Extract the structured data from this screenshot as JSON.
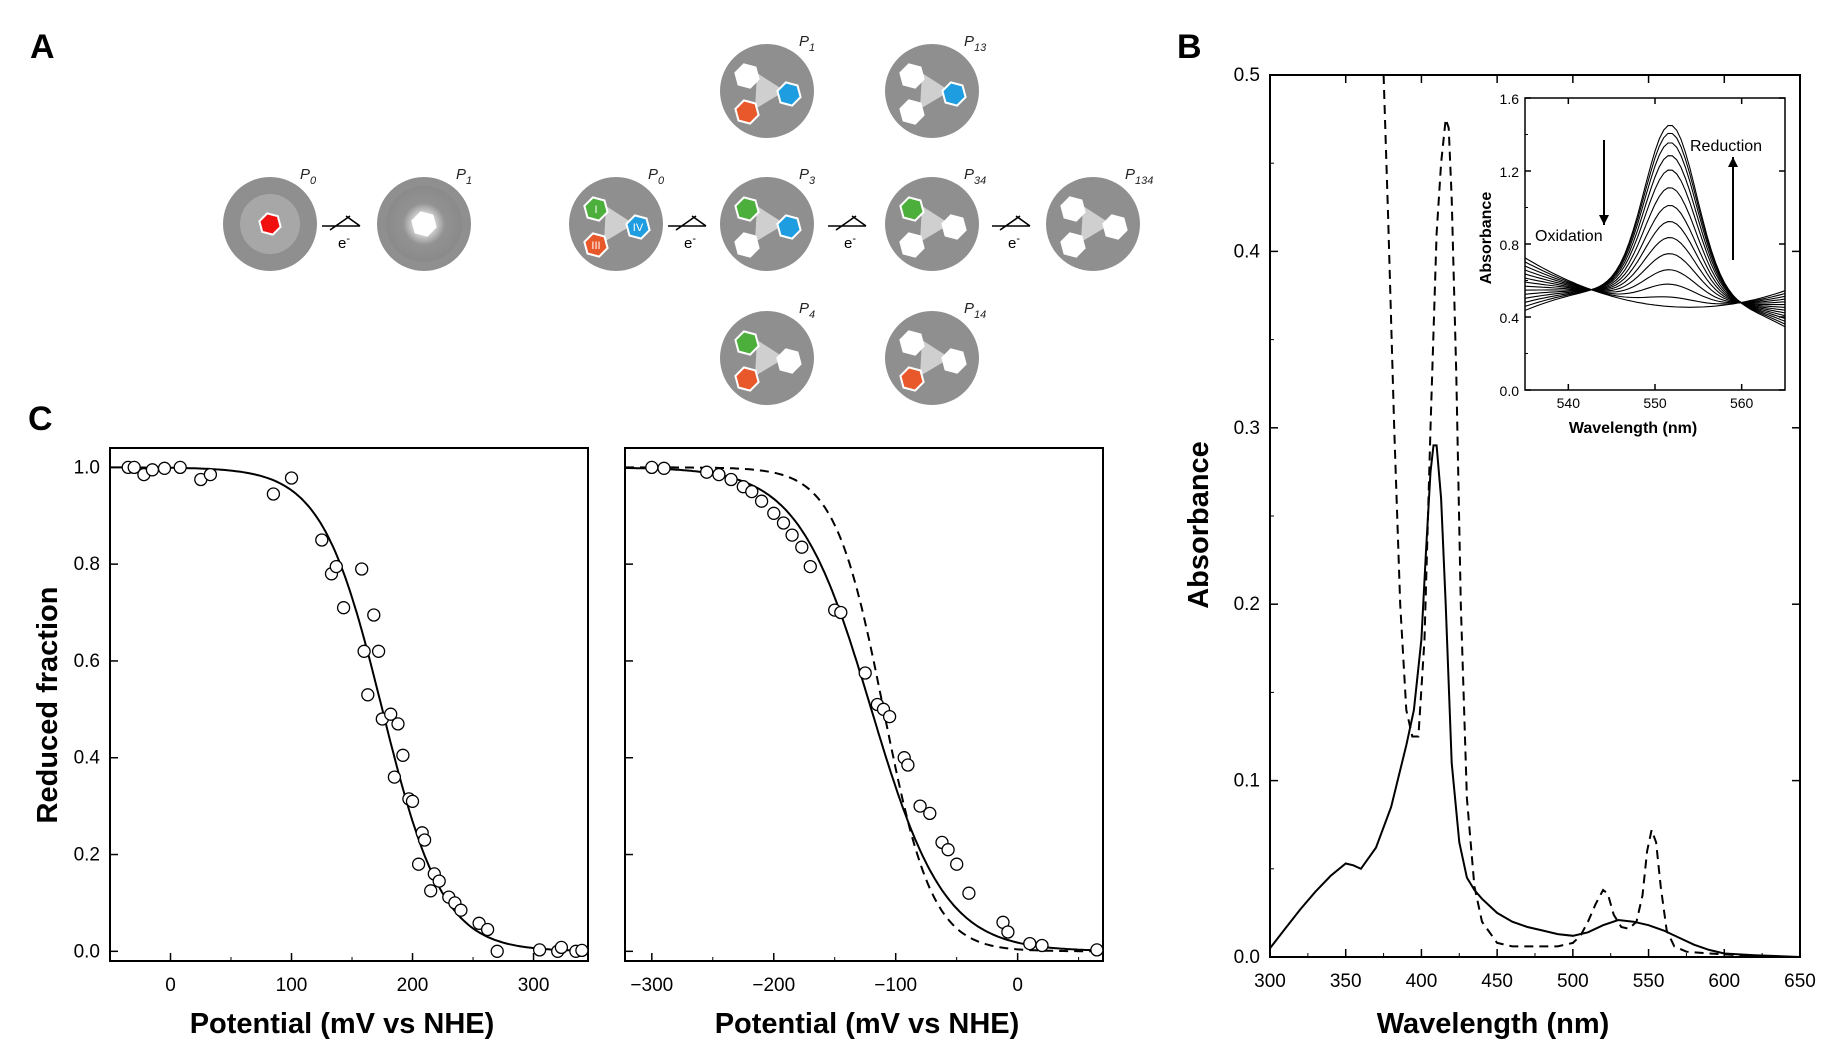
{
  "panel_labels": {
    "a": "A",
    "b": "B",
    "c": "C"
  },
  "schematic": {
    "electron_label": "e",
    "electron_sup": "-",
    "states": [
      {
        "key": "p0a",
        "label": "P",
        "sub": "0"
      },
      {
        "key": "p1a",
        "label": "P",
        "sub": "1"
      },
      {
        "key": "p0b",
        "label": "P",
        "sub": "0"
      },
      {
        "key": "p1b",
        "label": "P",
        "sub": "1"
      },
      {
        "key": "p13",
        "label": "P",
        "sub": "13"
      },
      {
        "key": "p3",
        "label": "P",
        "sub": "3"
      },
      {
        "key": "p34",
        "label": "P",
        "sub": "34"
      },
      {
        "key": "p134",
        "label": "P",
        "sub": "134"
      },
      {
        "key": "p4",
        "label": "P",
        "sub": "4"
      },
      {
        "key": "p14",
        "label": "P",
        "sub": "14"
      }
    ],
    "heme_labels": {
      "h1": "I",
      "h3": "III",
      "h4": "IV"
    },
    "colors": {
      "disk": "#8f8f8f",
      "heme1": "#4caf3c",
      "heme3": "#e8582a",
      "heme4": "#1e9de0",
      "single": "#f01010",
      "reduced": "#ffffff"
    }
  },
  "chart_data": [
    {
      "id": "B-main",
      "type": "line",
      "xlabel": "Wavelength (nm)",
      "ylabel": "Absorbance",
      "xlim": [
        300,
        650
      ],
      "ylim": [
        0,
        0.5
      ],
      "xticks": [
        300,
        350,
        400,
        450,
        500,
        550,
        600,
        650
      ],
      "yticks": [
        0.0,
        0.1,
        0.2,
        0.3,
        0.4,
        0.5
      ],
      "series": [
        {
          "name": "solid",
          "style": "solid",
          "x": [
            300,
            310,
            320,
            330,
            340,
            350,
            355,
            360,
            370,
            380,
            390,
            395,
            400,
            403,
            406,
            408,
            410,
            413,
            416,
            420,
            425,
            430,
            435,
            440,
            450,
            460,
            470,
            480,
            490,
            500,
            510,
            520,
            530,
            540,
            550,
            560,
            570,
            580,
            590,
            600,
            620,
            650
          ],
          "y": [
            0.005,
            0.016,
            0.027,
            0.037,
            0.046,
            0.053,
            0.052,
            0.05,
            0.062,
            0.085,
            0.12,
            0.14,
            0.18,
            0.23,
            0.275,
            0.29,
            0.29,
            0.26,
            0.2,
            0.11,
            0.065,
            0.045,
            0.038,
            0.033,
            0.025,
            0.02,
            0.017,
            0.015,
            0.013,
            0.012,
            0.014,
            0.018,
            0.021,
            0.02,
            0.018,
            0.015,
            0.011,
            0.007,
            0.004,
            0.002,
            0.001,
            0.0
          ]
        },
        {
          "name": "dashed",
          "style": "dashed",
          "x": [
            375,
            378,
            382,
            386,
            390,
            394,
            398,
            402,
            406,
            410,
            413,
            416,
            418,
            420,
            423,
            426,
            430,
            435,
            440,
            450,
            460,
            470,
            480,
            490,
            500,
            505,
            510,
            515,
            520,
            523,
            527,
            532,
            537,
            542,
            546,
            549,
            552,
            555,
            558,
            562,
            567,
            575,
            590,
            610,
            630,
            650
          ],
          "y": [
            0.5,
            0.42,
            0.3,
            0.2,
            0.14,
            0.125,
            0.125,
            0.18,
            0.3,
            0.41,
            0.45,
            0.475,
            0.47,
            0.43,
            0.33,
            0.2,
            0.09,
            0.04,
            0.02,
            0.008,
            0.006,
            0.006,
            0.006,
            0.006,
            0.008,
            0.012,
            0.02,
            0.03,
            0.038,
            0.036,
            0.024,
            0.017,
            0.016,
            0.02,
            0.035,
            0.06,
            0.072,
            0.065,
            0.04,
            0.015,
            0.006,
            0.003,
            0.002,
            0.001,
            0.0,
            0.0
          ]
        }
      ]
    },
    {
      "id": "B-inset",
      "type": "line",
      "xlabel": "Wavelength (nm)",
      "ylabel": "Absorbance",
      "xlim": [
        535,
        565
      ],
      "ylim": [
        0.0,
        1.6
      ],
      "xticks": [
        540,
        550,
        560
      ],
      "yticks": [
        0.0,
        0.4,
        0.8,
        1.2,
        1.6
      ],
      "annotations": {
        "oxidation": "Oxidation",
        "reduction": "Reduction"
      },
      "series": {
        "peak_x": 551.8,
        "peak_heights": [
          0.0,
          0.05,
          0.12,
          0.2,
          0.29,
          0.38,
          0.47,
          0.56,
          0.66,
          0.76,
          0.84,
          0.91,
          0.96,
          1.0
        ],
        "isosbestic_x": [
          543,
          559
        ],
        "isosbestic_y": [
          0.55,
          0.45
        ]
      }
    },
    {
      "id": "C-left",
      "type": "scatter",
      "xlabel": "Potential (mV vs NHE)",
      "ylabel": "Reduced fraction",
      "xlim": [
        -50,
        345
      ],
      "ylim": [
        -0.02,
        1.04
      ],
      "xticks": [
        0,
        100,
        200,
        300
      ],
      "yticks": [
        0.0,
        0.2,
        0.4,
        0.6,
        0.8,
        1.0
      ],
      "fit": {
        "midpoint": 175,
        "width": 25
      },
      "points": {
        "x": [
          -35,
          -30,
          -22,
          -15,
          -5,
          8,
          25,
          33,
          85,
          100,
          125,
          133,
          137,
          143,
          158,
          160,
          163,
          168,
          172,
          175,
          182,
          185,
          188,
          192,
          197,
          200,
          205,
          208,
          210,
          215,
          218,
          222,
          230,
          235,
          240,
          255,
          262,
          270,
          305,
          320,
          323,
          335,
          340
        ],
        "y": [
          1.0,
          1.0,
          0.985,
          0.995,
          0.998,
          1.0,
          0.975,
          0.985,
          0.945,
          0.978,
          0.85,
          0.78,
          0.795,
          0.71,
          0.79,
          0.62,
          0.53,
          0.695,
          0.62,
          0.48,
          0.49,
          0.36,
          0.47,
          0.405,
          0.315,
          0.31,
          0.18,
          0.245,
          0.23,
          0.125,
          0.16,
          0.145,
          0.112,
          0.1,
          0.085,
          0.058,
          0.045,
          0.0,
          0.003,
          0.0,
          0.008,
          0.0,
          0.002
        ]
      }
    },
    {
      "id": "C-right",
      "type": "scatter",
      "xlabel": "Potential (mV vs NHE)",
      "ylabel": "",
      "xlim": [
        -322,
        70
      ],
      "ylim": [
        -0.02,
        1.04
      ],
      "xticks": [
        -300,
        -200,
        -100,
        0
      ],
      "yticks": [
        0.0,
        0.2,
        0.4,
        0.6,
        0.8,
        1.0
      ],
      "fit": {
        "midpoint": -120,
        "width": 30
      },
      "dashed_fit": {
        "midpoint": -110,
        "width": 20
      },
      "points": {
        "x": [
          -300,
          -290,
          -255,
          -245,
          -235,
          -225,
          -218,
          -210,
          -200,
          -192,
          -185,
          -177,
          -170,
          -150,
          -145,
          -125,
          -115,
          -110,
          -105,
          -93,
          -90,
          -80,
          -72,
          -62,
          -57,
          -50,
          -40,
          -12,
          -8,
          10,
          20,
          65
        ],
        "y": [
          1.0,
          0.998,
          0.99,
          0.985,
          0.975,
          0.96,
          0.95,
          0.93,
          0.905,
          0.885,
          0.86,
          0.835,
          0.795,
          0.705,
          0.7,
          0.575,
          0.51,
          0.5,
          0.485,
          0.4,
          0.385,
          0.3,
          0.285,
          0.225,
          0.21,
          0.18,
          0.12,
          0.06,
          0.04,
          0.016,
          0.012,
          0.003
        ]
      }
    }
  ]
}
